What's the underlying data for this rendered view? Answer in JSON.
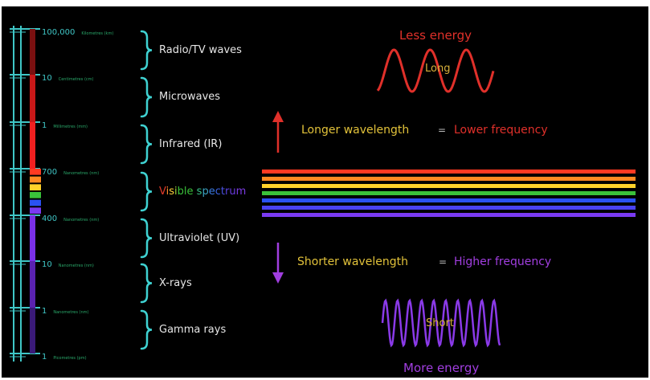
{
  "scale_ticks": [
    {
      "value": "100,000",
      "unit": "Kilometres (km)"
    },
    {
      "value": "10",
      "unit": "Centimetres (cm)"
    },
    {
      "value": "1",
      "unit": "Millimetres (mm)"
    },
    {
      "value": "700",
      "unit": "Nanometres (nm)"
    },
    {
      "value": "400",
      "unit": "Nanometres (nm)"
    },
    {
      "value": "10",
      "unit": "Nanometres (nm)"
    },
    {
      "value": "1",
      "unit": "Nanometres (nm)"
    },
    {
      "value": "1",
      "unit": "Picometres (pm)"
    }
  ],
  "regions": [
    {
      "label": "Radio/TV waves",
      "color": "#7a1010"
    },
    {
      "label": "Microwaves",
      "color": "#c81818"
    },
    {
      "label": "Infrared (IR)",
      "color": "#f02020"
    },
    {
      "label": "Visible spectrum",
      "color": "#ffffff"
    },
    {
      "label": "Ultraviolet (UV)",
      "color": "#7a30e8"
    },
    {
      "label": "X-rays",
      "color": "#5a22b0"
    },
    {
      "label": "Gamma rays",
      "color": "#3a1a78"
    }
  ],
  "visible_label_letters": [
    {
      "ch": "V",
      "color": "#e23a2a"
    },
    {
      "ch": "i",
      "color": "#ff8a2a"
    },
    {
      "ch": "s",
      "color": "#ffd23a"
    },
    {
      "ch": "i",
      "color": "#9ad23a"
    },
    {
      "ch": "b",
      "color": "#3ac23a"
    },
    {
      "ch": "l",
      "color": "#3ac23a"
    },
    {
      "ch": "e",
      "color": "#3ac23a"
    },
    {
      "ch": " ",
      "color": "#3ac23a"
    },
    {
      "ch": "s",
      "color": "#3ac28a"
    },
    {
      "ch": "p",
      "color": "#3aa2c2"
    },
    {
      "ch": "e",
      "color": "#3a7ae2"
    },
    {
      "ch": "c",
      "color": "#3a62e2"
    },
    {
      "ch": "t",
      "color": "#4a52e2"
    },
    {
      "ch": "r",
      "color": "#5a42e2"
    },
    {
      "ch": "u",
      "color": "#6a3ae2"
    },
    {
      "ch": "m",
      "color": "#7a3ae2"
    }
  ],
  "spectrum_colors": [
    "#ff3a22",
    "#ff8a22",
    "#ffd22a",
    "#3ac23a",
    "#2a52f2",
    "#7a3af2"
  ],
  "top_panel": {
    "energy": "Less energy",
    "wave_label": "Long",
    "wavelength": "Longer wavelength",
    "equals": "=",
    "frequency": "Lower frequency"
  },
  "bottom_panel": {
    "wavelength": "Shorter wavelength",
    "equals": "=",
    "frequency": "Higher frequency",
    "wave_label": "Short",
    "energy": "More energy"
  },
  "colors": {
    "background": "#000000",
    "scale": "#3fc6c6",
    "brace": "#3fd2d2",
    "red": "#e0302a",
    "yellow": "#e2c23a",
    "purple": "#a13ee0",
    "long_wave": "#e0302a",
    "short_wave": "#8a3ae8"
  }
}
